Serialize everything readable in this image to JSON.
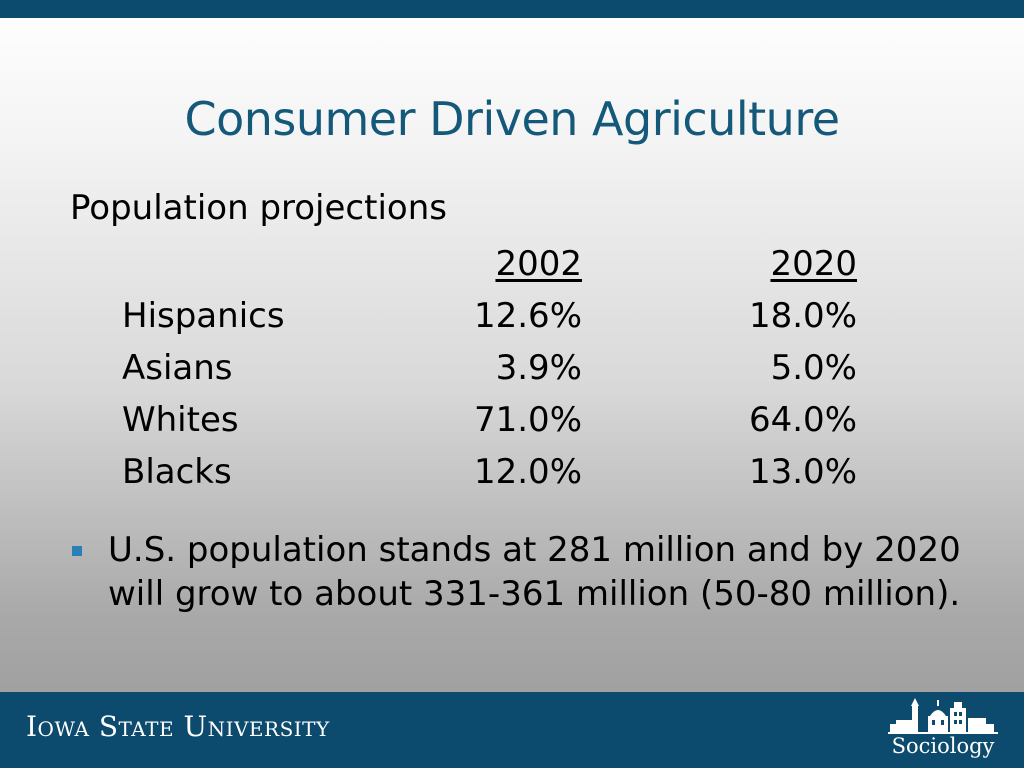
{
  "slide": {
    "title": "Consumer Driven Agriculture",
    "subtitle": "Population projections"
  },
  "table": {
    "headers": [
      "",
      "2002",
      "2020"
    ],
    "rows": [
      {
        "label": "Hispanics",
        "y2002": "12.6%",
        "y2020": "18.0%"
      },
      {
        "label": "Asians",
        "y2002": "3.9%",
        "y2020": "5.0%"
      },
      {
        "label": "Whites",
        "y2002": "71.0%",
        "y2020": "64.0%"
      },
      {
        "label": "Blacks",
        "y2002": "12.0%",
        "y2020": "13.0%"
      }
    ]
  },
  "bullets": [
    "U.S. population stands at 281 million and by 2020 will grow to about 331-361 million (50-80 million)."
  ],
  "footer": {
    "university": "Iowa State University",
    "department": "Sociology",
    "department_logo_icon": "campus-skyline-icon"
  },
  "colors": {
    "brand_blue": "#0c4a6e",
    "title_blue": "#14587a",
    "bullet_blue": "#2b7fb8"
  }
}
